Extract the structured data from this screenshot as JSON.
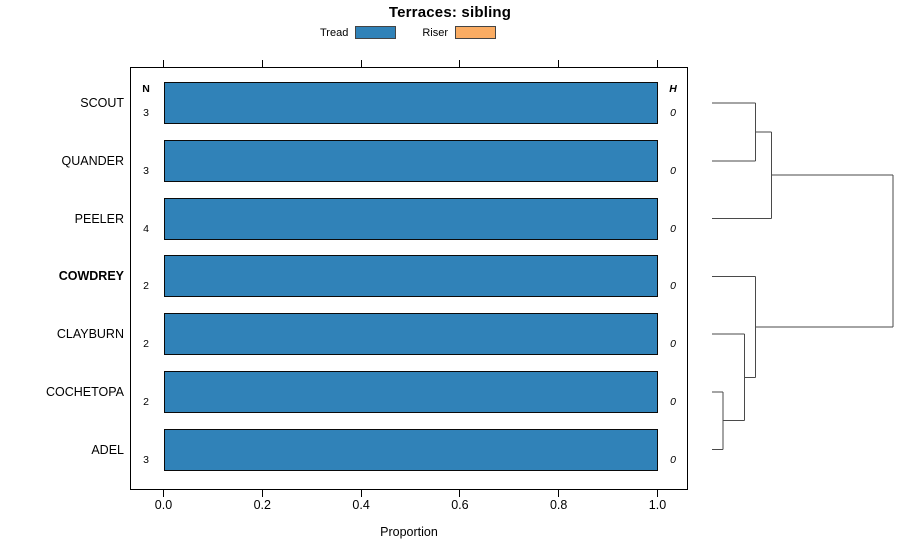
{
  "title": "Terraces: sibling",
  "legend": {
    "items": [
      {
        "label": "Tread",
        "color": "#3082B8"
      },
      {
        "label": "Riser",
        "color": "#FAAC63"
      }
    ]
  },
  "axis": {
    "xlabel": "Proportion",
    "ticks": [
      "0.0",
      "0.2",
      "0.4",
      "0.6",
      "0.8",
      "1.0"
    ]
  },
  "columns": {
    "n": "N",
    "h": "H"
  },
  "rows": [
    {
      "label": "SCOUT",
      "n": "3",
      "h": "0",
      "bold": false
    },
    {
      "label": "QUANDER",
      "n": "3",
      "h": "0",
      "bold": false
    },
    {
      "label": "PEELER",
      "n": "4",
      "h": "0",
      "bold": false
    },
    {
      "label": "COWDREY",
      "n": "2",
      "h": "0",
      "bold": true
    },
    {
      "label": "CLAYBURN",
      "n": "2",
      "h": "0",
      "bold": false
    },
    {
      "label": "COCHETOPA",
      "n": "2",
      "h": "0",
      "bold": false
    },
    {
      "label": "ADEL",
      "n": "3",
      "h": "0",
      "bold": false
    }
  ],
  "chart_data": {
    "type": "bar",
    "orientation": "horizontal",
    "title": "Terraces: sibling",
    "xlabel": "Proportion",
    "xlim": [
      0.0,
      1.0
    ],
    "xticks": [
      0.0,
      0.2,
      0.4,
      0.6,
      0.8,
      1.0
    ],
    "grid": false,
    "legend_position": "top",
    "categories": [
      "SCOUT",
      "QUANDER",
      "PEELER",
      "COWDREY",
      "CLAYBURN",
      "COCHETOPA",
      "ADEL"
    ],
    "series": [
      {
        "name": "Tread",
        "color": "#3082B8",
        "values": [
          1.0,
          1.0,
          1.0,
          1.0,
          1.0,
          1.0,
          1.0
        ]
      },
      {
        "name": "Riser",
        "color": "#FAAC63",
        "values": [
          0,
          0,
          0,
          0,
          0,
          0,
          0
        ]
      }
    ],
    "n_column": {
      "header": "N",
      "values": [
        3,
        3,
        4,
        2,
        2,
        2,
        3
      ]
    },
    "h_column": {
      "header": "H",
      "values": [
        0,
        0,
        0,
        0,
        0,
        0,
        0
      ]
    },
    "dendrogram": {
      "side": "right",
      "newick": "(((SCOUT,QUANDER),PEELER),(COWDREY,(CLAYBURN,(COCHETOPA,ADEL))));",
      "tree": {
        "h": 1.0,
        "children": [
          {
            "h": 0.33,
            "children": [
              {
                "h": 0.24,
                "children": [
                  {
                    "leaf": 0
                  },
                  {
                    "leaf": 1
                  }
                ]
              },
              {
                "leaf": 2
              }
            ]
          },
          {
            "h": 0.24,
            "children": [
              {
                "leaf": 3
              },
              {
                "h": 0.18,
                "children": [
                  {
                    "leaf": 4
                  },
                  {
                    "h": 0.06,
                    "children": [
                      {
                        "leaf": 5
                      },
                      {
                        "leaf": 6
                      }
                    ]
                  }
                ]
              }
            ]
          }
        ]
      }
    }
  }
}
